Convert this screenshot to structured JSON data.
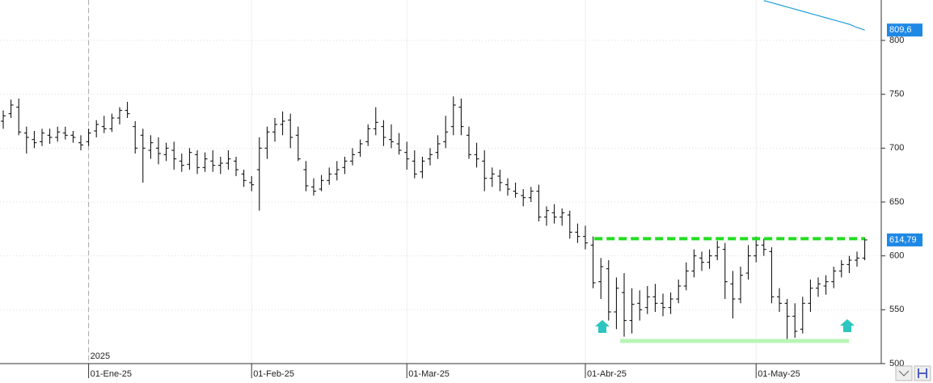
{
  "chart_data": {
    "type": "ohlc",
    "bar_color": "#000000",
    "categories": [
      null,
      null,
      null,
      null,
      null,
      null,
      null,
      null,
      null,
      null,
      null,
      "01-Ene-25",
      null,
      null,
      null,
      null,
      null,
      null,
      null,
      null,
      null,
      null,
      null,
      null,
      null,
      null,
      null,
      null,
      null,
      null,
      null,
      null,
      "01-Feb-25",
      null,
      null,
      null,
      null,
      null,
      null,
      null,
      null,
      null,
      null,
      null,
      null,
      null,
      null,
      null,
      null,
      null,
      null,
      null,
      "01-Mar-25",
      null,
      null,
      null,
      null,
      null,
      null,
      null,
      null,
      null,
      null,
      null,
      null,
      null,
      null,
      null,
      null,
      null,
      null,
      null,
      null,
      null,
      null,
      "01-Abr-25",
      null,
      null,
      null,
      null,
      null,
      null,
      null,
      null,
      null,
      null,
      null,
      null,
      null,
      null,
      null,
      null,
      null,
      null,
      null,
      null,
      null,
      "01-May-25",
      null,
      null,
      null,
      null,
      null,
      null,
      null,
      null,
      null,
      null,
      null,
      null,
      null,
      null
    ],
    "year_label": "2025",
    "ohlc": [
      [
        725,
        735,
        718,
        730
      ],
      [
        732,
        745,
        728,
        740
      ],
      [
        738,
        746,
        712,
        715
      ],
      [
        714,
        720,
        695,
        710
      ],
      [
        708,
        716,
        700,
        705
      ],
      [
        706,
        718,
        702,
        714
      ],
      [
        712,
        718,
        704,
        710
      ],
      [
        710,
        720,
        706,
        715
      ],
      [
        714,
        720,
        708,
        712
      ],
      [
        712,
        716,
        705,
        710
      ],
      [
        705,
        712,
        698,
        703
      ],
      [
        706,
        718,
        702,
        714
      ],
      [
        716,
        726,
        710,
        722
      ],
      [
        720,
        730,
        714,
        718
      ],
      [
        718,
        732,
        715,
        728
      ],
      [
        728,
        738,
        722,
        735
      ],
      [
        735,
        743,
        728,
        732
      ],
      [
        720,
        725,
        695,
        700
      ],
      [
        712,
        718,
        668,
        700
      ],
      [
        698,
        712,
        690,
        705
      ],
      [
        700,
        710,
        685,
        695
      ],
      [
        694,
        705,
        688,
        700
      ],
      [
        698,
        706,
        680,
        690
      ],
      [
        688,
        695,
        678,
        684
      ],
      [
        685,
        700,
        680,
        696
      ],
      [
        694,
        698,
        676,
        682
      ],
      [
        682,
        696,
        678,
        690
      ],
      [
        688,
        698,
        678,
        684
      ],
      [
        684,
        692,
        676,
        686
      ],
      [
        686,
        698,
        680,
        690
      ],
      [
        688,
        692,
        674,
        680
      ],
      [
        676,
        680,
        664,
        670
      ],
      [
        668,
        674,
        660,
        666
      ],
      [
        680,
        710,
        642,
        700
      ],
      [
        700,
        720,
        690,
        715
      ],
      [
        715,
        728,
        706,
        722
      ],
      [
        722,
        734,
        712,
        725
      ],
      [
        726,
        732,
        700,
        710
      ],
      [
        712,
        720,
        688,
        690
      ],
      [
        680,
        688,
        660,
        665
      ],
      [
        664,
        672,
        656,
        660
      ],
      [
        662,
        675,
        660,
        670
      ],
      [
        670,
        682,
        666,
        676
      ],
      [
        676,
        688,
        670,
        680
      ],
      [
        682,
        692,
        676,
        688
      ],
      [
        688,
        700,
        684,
        694
      ],
      [
        696,
        708,
        692,
        704
      ],
      [
        706,
        722,
        702,
        718
      ],
      [
        718,
        738,
        712,
        724
      ],
      [
        720,
        726,
        702,
        710
      ],
      [
        708,
        722,
        700,
        706
      ],
      [
        704,
        714,
        694,
        698
      ],
      [
        696,
        706,
        680,
        690
      ],
      [
        688,
        698,
        672,
        676
      ],
      [
        678,
        692,
        672,
        688
      ],
      [
        690,
        700,
        684,
        694
      ],
      [
        696,
        712,
        690,
        704
      ],
      [
        706,
        730,
        700,
        715
      ],
      [
        720,
        748,
        712,
        740
      ],
      [
        738,
        746,
        712,
        720
      ],
      [
        712,
        720,
        690,
        694
      ],
      [
        694,
        705,
        682,
        690
      ],
      [
        688,
        698,
        660,
        672
      ],
      [
        672,
        682,
        664,
        676
      ],
      [
        674,
        680,
        660,
        668
      ],
      [
        666,
        672,
        656,
        662
      ],
      [
        660,
        668,
        654,
        658
      ],
      [
        656,
        662,
        646,
        654
      ],
      [
        654,
        664,
        650,
        660
      ],
      [
        660,
        666,
        632,
        636
      ],
      [
        636,
        646,
        628,
        642
      ],
      [
        640,
        648,
        630,
        636
      ],
      [
        636,
        644,
        628,
        640
      ],
      [
        638,
        642,
        616,
        622
      ],
      [
        622,
        630,
        612,
        618
      ],
      [
        618,
        628,
        606,
        612
      ],
      [
        610,
        618,
        570,
        575
      ],
      [
        576,
        598,
        560,
        590
      ],
      [
        588,
        596,
        540,
        548
      ],
      [
        548,
        580,
        532,
        570
      ],
      [
        566,
        584,
        525,
        540
      ],
      [
        540,
        570,
        528,
        555
      ],
      [
        556,
        568,
        540,
        550
      ],
      [
        552,
        572,
        546,
        562
      ],
      [
        562,
        574,
        548,
        556
      ],
      [
        556,
        565,
        544,
        552
      ],
      [
        552,
        566,
        546,
        560
      ],
      [
        560,
        578,
        556,
        572
      ],
      [
        572,
        594,
        568,
        586
      ],
      [
        586,
        606,
        580,
        600
      ],
      [
        598,
        604,
        586,
        594
      ],
      [
        594,
        606,
        588,
        600
      ],
      [
        600,
        614,
        596,
        608
      ],
      [
        606,
        612,
        560,
        576
      ],
      [
        574,
        586,
        542,
        560
      ],
      [
        560,
        590,
        556,
        582
      ],
      [
        584,
        610,
        578,
        600
      ],
      [
        600,
        618,
        594,
        610
      ],
      [
        610,
        616,
        600,
        606
      ],
      [
        604,
        608,
        556,
        562
      ],
      [
        562,
        570,
        548,
        556
      ],
      [
        556,
        560,
        520,
        544
      ],
      [
        544,
        556,
        524,
        530
      ],
      [
        532,
        562,
        528,
        556
      ],
      [
        556,
        578,
        548,
        570
      ],
      [
        570,
        580,
        562,
        574
      ],
      [
        572,
        582,
        564,
        576
      ],
      [
        576,
        590,
        570,
        586
      ],
      [
        586,
        596,
        580,
        592
      ],
      [
        592,
        600,
        584,
        596
      ],
      [
        596,
        604,
        590,
        598
      ],
      [
        598,
        617,
        596,
        614.79
      ]
    ],
    "line": {
      "color": "#1f9fd8",
      "values": [
        null,
        null,
        null,
        null,
        null,
        null,
        null,
        null,
        null,
        null,
        null,
        null,
        null,
        null,
        null,
        null,
        null,
        null,
        null,
        null,
        null,
        null,
        null,
        null,
        null,
        null,
        null,
        null,
        null,
        null,
        null,
        null,
        null,
        null,
        null,
        null,
        null,
        null,
        null,
        null,
        null,
        null,
        null,
        null,
        null,
        null,
        null,
        null,
        null,
        null,
        null,
        null,
        null,
        null,
        null,
        null,
        null,
        null,
        null,
        null,
        null,
        null,
        null,
        null,
        null,
        null,
        null,
        null,
        null,
        null,
        null,
        null,
        null,
        null,
        null,
        null,
        null,
        null,
        null,
        null,
        null,
        null,
        null,
        null,
        null,
        null,
        null,
        null,
        null,
        null,
        null,
        null,
        null,
        null,
        null,
        null,
        null,
        null,
        837,
        835,
        833,
        831,
        829,
        827,
        825,
        823,
        821,
        819,
        817,
        815,
        812,
        809.6
      ]
    },
    "price_labels": [
      {
        "value": 809.6,
        "label": "809,6"
      },
      {
        "value": 614.79,
        "label": "614,79"
      }
    ],
    "label_color": "#1e88e5",
    "resistance": {
      "value": 616,
      "color": "#22dd22"
    },
    "support": {
      "value": 521,
      "color": "#b8f5b8"
    },
    "ylim": [
      500,
      837.5
    ],
    "yticks": [
      500,
      550,
      600,
      650,
      700,
      750,
      800
    ],
    "grid": true
  }
}
